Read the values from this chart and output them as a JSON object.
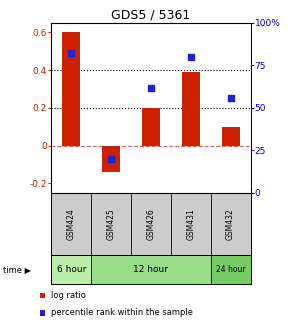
{
  "title": "GDS5 / 5361",
  "samples": [
    "GSM424",
    "GSM425",
    "GSM426",
    "GSM431",
    "GSM432"
  ],
  "log_ratio": [
    0.6,
    -0.14,
    0.2,
    0.39,
    0.1
  ],
  "percentile_rank": [
    82,
    20,
    62,
    80,
    56
  ],
  "bar_color": "#cc2200",
  "dot_color": "#2222cc",
  "ylim_left": [
    -0.25,
    0.65
  ],
  "ylim_right": [
    0,
    100
  ],
  "yticks_left": [
    -0.2,
    0.0,
    0.2,
    0.4,
    0.6
  ],
  "yticks_right": [
    0,
    25,
    50,
    75,
    100
  ],
  "ytick_labels_left": [
    "-0.2",
    "0",
    "0.2",
    "0.4",
    "0.6"
  ],
  "ytick_labels_right": [
    "0",
    "25",
    "50",
    "75",
    "100%"
  ],
  "hlines": [
    0.2,
    0.4
  ],
  "zero_line": 0.0,
  "time_groups": [
    {
      "label": "6 hour",
      "samples": [
        "GSM424"
      ],
      "color": "#bbeeaa"
    },
    {
      "label": "12 hour",
      "samples": [
        "GSM425",
        "GSM426",
        "GSM431"
      ],
      "color": "#99dd88"
    },
    {
      "label": "24 hour",
      "samples": [
        "GSM432"
      ],
      "color": "#77cc66"
    }
  ],
  "legend_log_ratio": "log ratio",
  "legend_percentile": "percentile rank within the sample",
  "bar_width": 0.45,
  "background_color": "#ffffff"
}
